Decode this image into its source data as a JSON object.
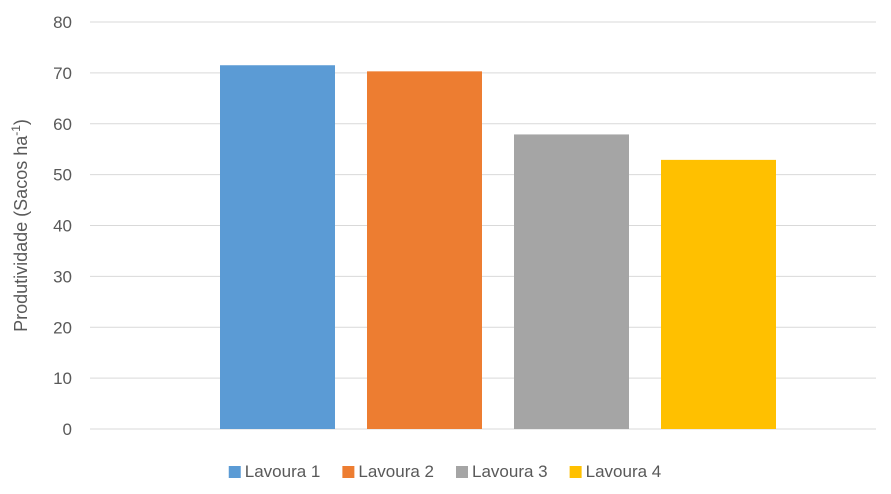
{
  "chart_data": {
    "type": "bar",
    "title": "",
    "xlabel": "",
    "ylabel": "Produtividade (Sacos ha",
    "ylabel_superscript": "-1",
    "ylabel_suffix": ")",
    "ylim": [
      0,
      80
    ],
    "yticks": [
      "0",
      "10",
      "20",
      "30",
      "40",
      "50",
      "60",
      "70",
      "80"
    ],
    "grid": true,
    "legend_position": "bottom",
    "categories": [
      ""
    ],
    "series": [
      {
        "name": "Lavoura 1",
        "values": [
          71.5
        ],
        "color": "#5B9BD5"
      },
      {
        "name": "Lavoura 2",
        "values": [
          70.3
        ],
        "color": "#ED7D31"
      },
      {
        "name": "Lavoura 3",
        "values": [
          57.9
        ],
        "color": "#A5A5A5"
      },
      {
        "name": "Lavoura 4",
        "values": [
          52.9
        ],
        "color": "#FFC000"
      }
    ],
    "gridline_color": "#D9D9D9"
  }
}
